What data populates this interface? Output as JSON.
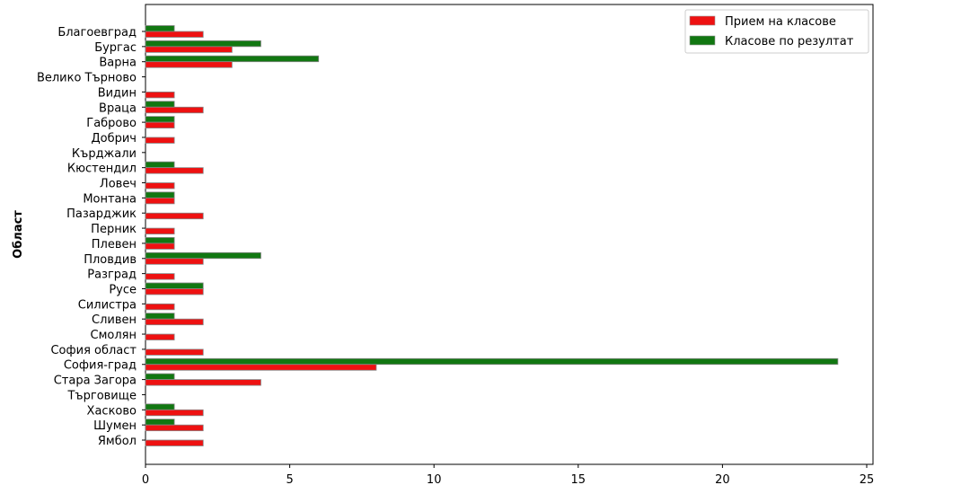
{
  "chart_data": {
    "type": "bar",
    "orientation": "horizontal",
    "title": "",
    "xlabel": "",
    "ylabel": "Област",
    "xlim": [
      0,
      25
    ],
    "xticks": [
      0,
      5,
      10,
      15,
      20,
      25
    ],
    "grid": false,
    "legend_position": "top-right",
    "categories": [
      "Благоевград",
      "Бургас",
      "Варна",
      "Велико Търново",
      "Видин",
      "Враца",
      "Габрово",
      "Добрич",
      "Кърджали",
      "Кюстендил",
      "Ловеч",
      "Монтана",
      "Пазарджик",
      "Перник",
      "Плевен",
      "Пловдив",
      "Разград",
      "Русе",
      "Силистра",
      "Сливен",
      "Смолян",
      "София област",
      "София-град",
      "Стара Загора",
      "Търговище",
      "Хасково",
      "Шумен",
      "Ямбол"
    ],
    "series": [
      {
        "name": "Прием на класове",
        "color": "#ee1111",
        "values": [
          2,
          3,
          3,
          0,
          1,
          2,
          1,
          1,
          0,
          2,
          1,
          1,
          2,
          1,
          1,
          2,
          1,
          2,
          1,
          2,
          1,
          2,
          8,
          4,
          0,
          2,
          2,
          2
        ]
      },
      {
        "name": "Класове по резултат",
        "color": "#117711",
        "values": [
          1,
          4,
          6,
          0,
          0,
          1,
          1,
          0,
          0,
          1,
          0,
          1,
          0,
          0,
          1,
          4,
          0,
          2,
          0,
          1,
          0,
          0,
          24,
          1,
          0,
          1,
          1,
          0
        ]
      }
    ]
  }
}
